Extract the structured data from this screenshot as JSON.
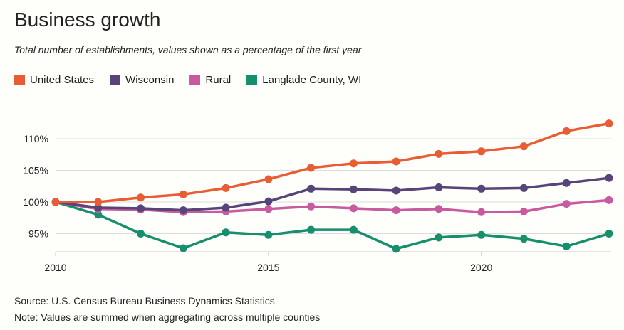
{
  "chart_data": {
    "type": "line",
    "title": "Business growth",
    "subtitle": "Total number of establishments, values shown as a percentage of the first year",
    "x": [
      2010,
      2011,
      2012,
      2013,
      2014,
      2015,
      2016,
      2017,
      2018,
      2019,
      2020,
      2021,
      2022,
      2023
    ],
    "xticks": [
      2010,
      2015,
      2020
    ],
    "xtick_labels": [
      "2010",
      "2015",
      "2020"
    ],
    "yticks": [
      95,
      100,
      105,
      110
    ],
    "ytick_labels": [
      "95%",
      "100%",
      "105%",
      "110%"
    ],
    "ylim": [
      92,
      113
    ],
    "grid": "horizontal",
    "legend": "top-left",
    "series": [
      {
        "name": "United States",
        "color": "#e85d34",
        "values": [
          100,
          100,
          100.7,
          101.2,
          102.2,
          103.6,
          105.4,
          106.1,
          106.4,
          107.6,
          108.0,
          108.8,
          111.2,
          112.4
        ]
      },
      {
        "name": "Wisconsin",
        "color": "#574478",
        "values": [
          100,
          99.1,
          99.0,
          98.7,
          99.1,
          100.1,
          102.1,
          102.0,
          101.8,
          102.3,
          102.1,
          102.2,
          103.0,
          103.8
        ]
      },
      {
        "name": "Rural",
        "color": "#c85ba0",
        "values": [
          100,
          98.9,
          98.8,
          98.4,
          98.5,
          98.9,
          99.3,
          99.0,
          98.7,
          98.9,
          98.4,
          98.5,
          99.7,
          100.3
        ]
      },
      {
        "name": "Langlade County, WI",
        "color": "#178f6c",
        "values": [
          100,
          98.0,
          95.0,
          92.7,
          95.2,
          94.8,
          95.6,
          95.6,
          92.6,
          94.4,
          94.8,
          94.2,
          93.0,
          95.0
        ]
      }
    ]
  },
  "footer": {
    "source": "Source: U.S. Census Bureau Business Dynamics Statistics",
    "note": "Note: Values are summed when aggregating across multiple counties"
  }
}
